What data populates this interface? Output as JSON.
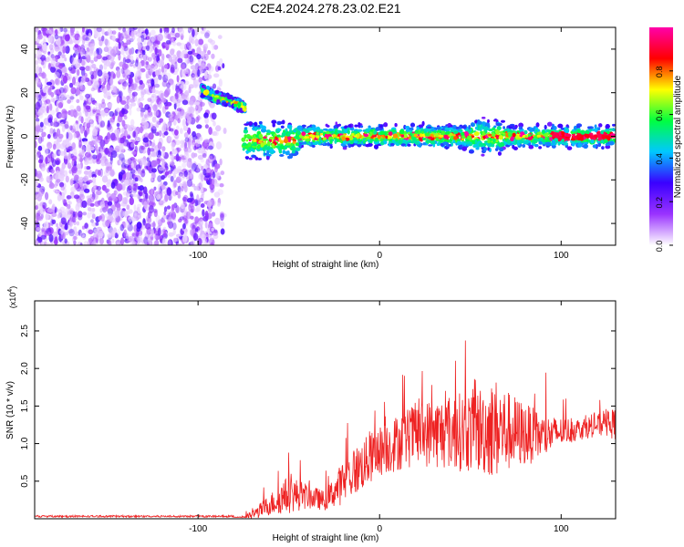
{
  "title": "C2E4.2024.278.23.02.E21",
  "chart_data": [
    {
      "type": "heatmap",
      "xlabel": "Height of straight line (km)",
      "ylabel": "Frequency (Hz)",
      "xlim": [
        -190,
        130
      ],
      "ylim": [
        -50,
        50
      ],
      "xticks": [
        -100,
        0,
        100
      ],
      "yticks": [
        -40,
        -20,
        0,
        20,
        40
      ],
      "colorbar": {
        "label": "Normalized spectral amplitude",
        "range": [
          0,
          1
        ],
        "ticks": [
          "0.0",
          "0.2",
          "0.4",
          "0.6",
          "0.8"
        ],
        "colormap": [
          "#ffffff",
          "#9a33ff",
          "#3a00ff",
          "#00c8ff",
          "#00ff40",
          "#ffff00",
          "#ff0000",
          "#ff00aa"
        ]
      },
      "features": [
        {
          "region": "noise",
          "x_range": [
            -190,
            -85
          ],
          "freq_range": [
            -50,
            50
          ],
          "amplitude": "low"
        },
        {
          "region": "descending segment",
          "x": [
            -98,
            -90,
            -82,
            -74
          ],
          "freq": [
            21,
            18,
            16,
            13
          ],
          "amplitude": "high"
        },
        {
          "region": "main signal",
          "x_range": [
            -75,
            130
          ],
          "freq": 0,
          "amplitude": "high"
        }
      ]
    },
    {
      "type": "line",
      "xlabel": "Height of straight line (km)",
      "ylabel": "SNR (10 * v/v)",
      "y_multiplier": "(x10^4)",
      "xlim": [
        -190,
        130
      ],
      "ylim": [
        0,
        29000
      ],
      "xticks": [
        -100,
        0,
        100
      ],
      "yticks": [
        5000,
        10000,
        15000,
        20000,
        25000
      ],
      "ytick_labels": [
        "0.5",
        "1.0",
        "1.5",
        "2.0",
        "2.5"
      ],
      "color": "#ee2222",
      "envelope": {
        "x": [
          -190,
          -80,
          -75,
          -70,
          -60,
          -50,
          -40,
          -30,
          -20,
          -10,
          0,
          10,
          20,
          30,
          40,
          50,
          60,
          65,
          70,
          80,
          90,
          100,
          110,
          120,
          130
        ],
        "base": [
          200,
          200,
          200,
          300,
          1500,
          2500,
          2500,
          2000,
          4000,
          6000,
          8000,
          9000,
          10000,
          10000,
          10000,
          10000,
          10000,
          10000,
          10000,
          10000,
          10000,
          11000,
          11500,
          12000,
          12000
        ],
        "amp": [
          0,
          0,
          300,
          1500,
          3500,
          6000,
          4000,
          3000,
          7000,
          8000,
          8000,
          9000,
          10000,
          11000,
          12000,
          13000,
          15000,
          16000,
          13000,
          10000,
          7000,
          4500,
          3500,
          3500,
          5000
        ]
      }
    }
  ]
}
